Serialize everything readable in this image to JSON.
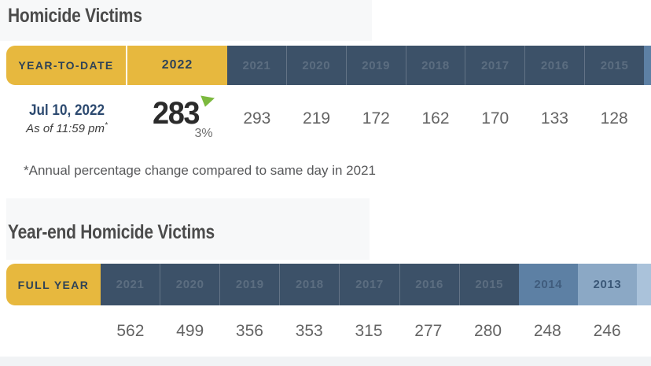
{
  "colors": {
    "gold": "#e7b83e",
    "dark_blue": "#3c5168",
    "mid_blue": "#5d80a4",
    "light_blue": "#8ba8c5",
    "pale_blue": "#aac2da",
    "navy_text": "#2e4257",
    "page_gray": "#f7f8f9",
    "green_indicator": "#7cb93e"
  },
  "section1": {
    "title": "Homicide Victims",
    "table": {
      "row_label": "YEAR-TO-DATE",
      "current_year": "2022",
      "years": [
        "2021",
        "2020",
        "2019",
        "2018",
        "2017",
        "2016",
        "2015"
      ],
      "date_line1": "Jul 10, 2022",
      "date_line2": "As of 11:59 pm",
      "date_line2_superscript": "*",
      "current_value": "283",
      "change_pct": "3%",
      "change_direction": "down",
      "values": [
        "293",
        "219",
        "172",
        "162",
        "170",
        "133",
        "128"
      ]
    },
    "footnote": "*Annual percentage change compared to same day in 2021"
  },
  "section2": {
    "title": "Year-end Homicide Victims",
    "table": {
      "row_label": "FULL YEAR",
      "years": [
        {
          "label": "2021",
          "shade": "dark"
        },
        {
          "label": "2020",
          "shade": "dark"
        },
        {
          "label": "2019",
          "shade": "dark"
        },
        {
          "label": "2018",
          "shade": "dark"
        },
        {
          "label": "2017",
          "shade": "dark"
        },
        {
          "label": "2016",
          "shade": "dark"
        },
        {
          "label": "2015",
          "shade": "dark"
        },
        {
          "label": "2014",
          "shade": "mid"
        },
        {
          "label": "2013",
          "shade": "light"
        }
      ],
      "values": [
        "562",
        "499",
        "356",
        "353",
        "315",
        "277",
        "280",
        "248",
        "246"
      ]
    }
  },
  "chart_data": [
    {
      "type": "table",
      "title": "Homicide Victims",
      "columns": [
        "YEAR-TO-DATE",
        "2022",
        "2021",
        "2020",
        "2019",
        "2018",
        "2017",
        "2016",
        "2015"
      ],
      "rows": [
        [
          "Jul 10, 2022 — As of 11:59 pm*",
          "283 (down 3%)",
          "293",
          "219",
          "172",
          "162",
          "170",
          "133",
          "128"
        ]
      ],
      "footnote": "*Annual percentage change compared to same day in 2021"
    },
    {
      "type": "table",
      "title": "Year-end Homicide Victims",
      "columns": [
        "FULL YEAR",
        "2021",
        "2020",
        "2019",
        "2018",
        "2017",
        "2016",
        "2015",
        "2014",
        "2013"
      ],
      "rows": [
        [
          "",
          "562",
          "499",
          "356",
          "353",
          "315",
          "277",
          "280",
          "248",
          "246"
        ]
      ]
    }
  ]
}
